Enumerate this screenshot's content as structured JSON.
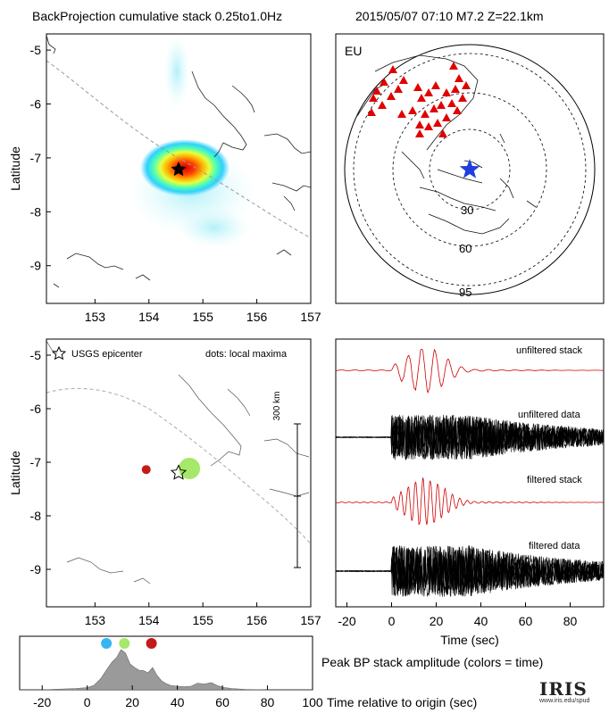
{
  "header": {
    "title": "BackProjection cumulative stack 0.25to1.0Hz",
    "event": "2015/05/07 07:10  M7.2  Z=22.1km"
  },
  "map_top": {
    "ylabel": "Latitude",
    "x_ticks": [
      "153",
      "154",
      "155",
      "156",
      "157"
    ],
    "y_ticks": [
      "-5",
      "-6",
      "-7",
      "-8",
      "-9"
    ],
    "xlim": [
      152.1,
      157
    ],
    "ylim": [
      -9.7,
      -4.7
    ],
    "epicenter": [
      154.52,
      -7.27
    ]
  },
  "map_bottom": {
    "ylabel": "Latitude",
    "x_ticks": [
      "153",
      "154",
      "155",
      "156",
      "157"
    ],
    "y_ticks": [
      "-5",
      "-6",
      "-7",
      "-8",
      "-9"
    ],
    "legend_epicenter": "USGS epicenter",
    "legend_dots": "dots: local maxima",
    "scalebar_label": "300 km",
    "maxima": [
      {
        "lon": 153.95,
        "lat": -7.17,
        "color": "#c41a1a",
        "size": "small"
      },
      {
        "lon": 154.75,
        "lat": -7.15,
        "color": "#a6e86a",
        "size": "large"
      }
    ]
  },
  "globe": {
    "network": "EU",
    "ring_labels": [
      "30",
      "60",
      "95"
    ],
    "source_color": "#1f3ee0",
    "station_color": "#e00000"
  },
  "traces": {
    "labels": [
      "unfiltered stack",
      "unfiltered data",
      "filtered stack",
      "filtered data"
    ],
    "x_ticks": [
      "-20",
      "0",
      "20",
      "40",
      "60",
      "80"
    ],
    "xlabel": "Time (sec)",
    "xlim": [
      -25,
      95
    ]
  },
  "chart_data": {
    "type": "area",
    "title": "Peak BP stack amplitude (colors = time)",
    "xlabel": "Time relative to origin (sec)",
    "x_ticks": [
      "-20",
      "0",
      "20",
      "40",
      "60",
      "80",
      "100"
    ],
    "xlim": [
      -30,
      100
    ],
    "ylim": [
      0,
      1
    ],
    "x": [
      -30,
      -20,
      -10,
      -5,
      0,
      3,
      6,
      9,
      11,
      13,
      15,
      17,
      19,
      21,
      23,
      25,
      27,
      29,
      31,
      33,
      35,
      37,
      40,
      43,
      46,
      49,
      52,
      55,
      58,
      61,
      64,
      67,
      70,
      75,
      80,
      85,
      90,
      100
    ],
    "y": [
      0,
      0,
      0.02,
      0.03,
      0.05,
      0.1,
      0.25,
      0.48,
      0.62,
      0.72,
      0.9,
      0.82,
      0.58,
      0.5,
      0.44,
      0.43,
      0.38,
      0.5,
      0.32,
      0.2,
      0.14,
      0.1,
      0.08,
      0.07,
      0.08,
      0.15,
      0.13,
      0.16,
      0.09,
      0.05,
      0.03,
      0.02,
      0.01,
      0.005,
      0,
      0,
      0,
      0
    ],
    "markers": [
      {
        "time": 8.5,
        "color": "#35b6f0"
      },
      {
        "time": 16.5,
        "color": "#a6e86a"
      },
      {
        "time": 28.5,
        "color": "#c41a1a"
      }
    ]
  },
  "logo": {
    "brand": "IRIS",
    "url": "www.iris.edu/spud"
  }
}
